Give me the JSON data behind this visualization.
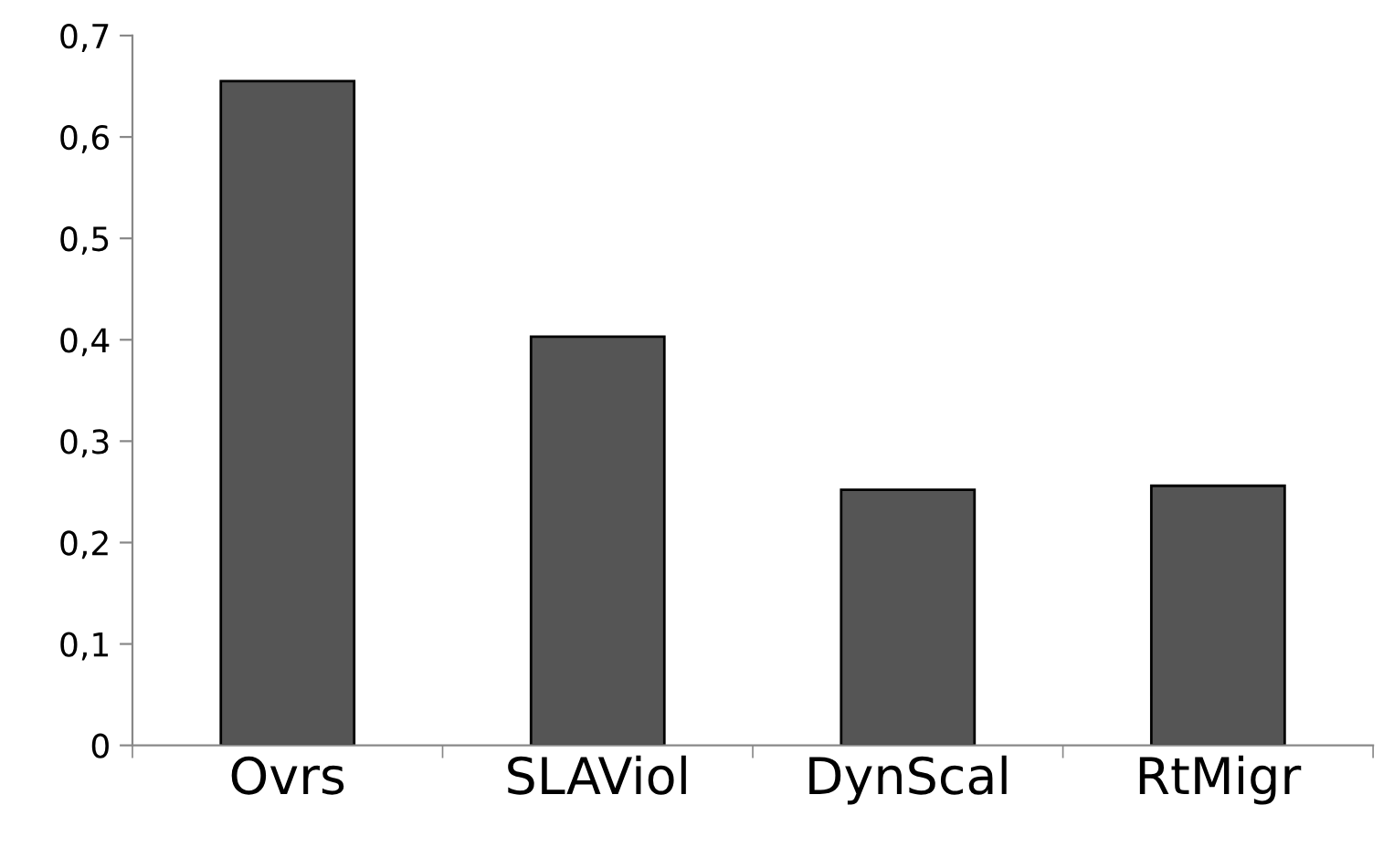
{
  "chart_data": {
    "type": "bar",
    "categories": [
      "Ovrs",
      "SLAViol",
      "DynScal",
      "RtMigr"
    ],
    "values": [
      0.655,
      0.403,
      0.252,
      0.256
    ],
    "color": "#555555",
    "ylim": [
      0,
      0.7
    ],
    "yticks": [
      0,
      {
        "value": 0.1,
        "label": "0,1"
      },
      {
        "value": 0.2,
        "label": "0,2"
      },
      {
        "value": 0.3,
        "label": "0,3"
      },
      {
        "value": 0.4,
        "label": "0,4"
      },
      {
        "value": 0.5,
        "label": "0,5"
      },
      {
        "value": 0.6,
        "label": "0,6"
      },
      {
        "value": 0.7,
        "label": "0,7"
      }
    ],
    "grid": false,
    "legend": false
  }
}
